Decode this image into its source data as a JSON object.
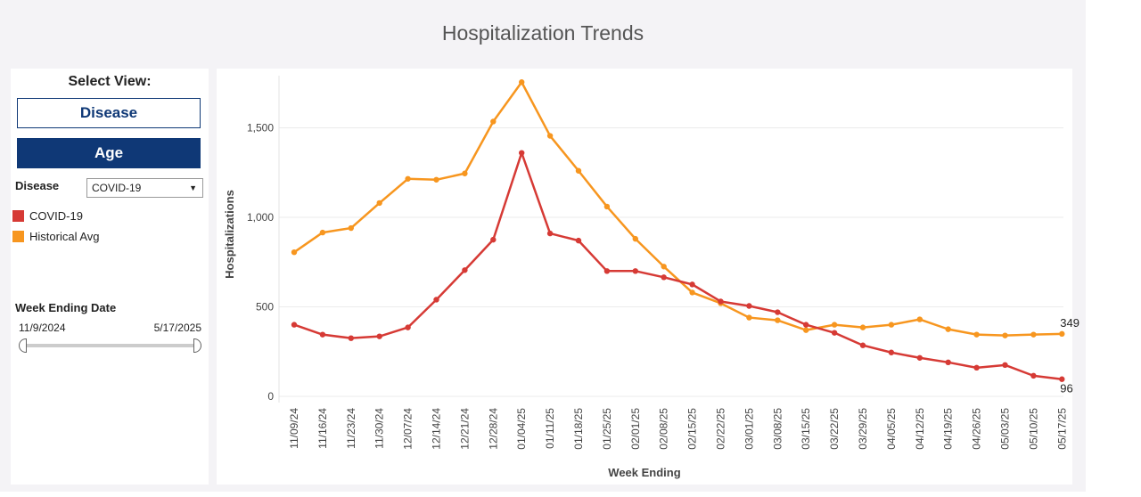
{
  "dashboard": {
    "title": "Hospitalization Trends"
  },
  "controls": {
    "select_view_label": "Select View:",
    "disease_button": "Disease",
    "age_button": "Age",
    "disease_filter_label": "Disease",
    "disease_filter_value": "COVID-19",
    "week_ending_label": "Week Ending Date",
    "range_start": "11/9/2024",
    "range_end": "5/17/2025"
  },
  "legend": [
    {
      "label": "COVID-19",
      "color": "#d63a35"
    },
    {
      "label": "Historical Avg",
      "color": "#f7961f"
    }
  ],
  "chart_data": {
    "type": "line",
    "title": "",
    "xlabel": "Week Ending",
    "ylabel": "Hospitalizations",
    "ylim": [
      0,
      1800
    ],
    "yticks": [
      0,
      500,
      1000,
      1500
    ],
    "ytick_labels": [
      "0",
      "500",
      "1,000",
      "1,500"
    ],
    "categories": [
      "11/09/24",
      "11/16/24",
      "11/23/24",
      "11/30/24",
      "12/07/24",
      "12/14/24",
      "12/21/24",
      "12/28/24",
      "01/04/25",
      "01/11/25",
      "01/18/25",
      "01/25/25",
      "02/01/25",
      "02/08/25",
      "02/15/25",
      "02/22/25",
      "03/01/25",
      "03/08/25",
      "03/15/25",
      "03/22/25",
      "03/29/25",
      "04/05/25",
      "04/12/25",
      "04/19/25",
      "04/26/25",
      "05/03/25",
      "05/10/25",
      "05/17/25"
    ],
    "series": [
      {
        "name": "Historical Avg",
        "color": "#f7961f",
        "values": [
          805,
          915,
          940,
          1080,
          1215,
          1210,
          1245,
          1535,
          1755,
          1455,
          1260,
          1060,
          880,
          725,
          580,
          520,
          440,
          425,
          370,
          400,
          385,
          400,
          430,
          375,
          345,
          340,
          345,
          349
        ],
        "end_label": "349"
      },
      {
        "name": "COVID-19",
        "color": "#d63a35",
        "values": [
          400,
          345,
          325,
          335,
          385,
          540,
          705,
          875,
          1360,
          910,
          870,
          700,
          700,
          665,
          625,
          530,
          505,
          470,
          400,
          355,
          285,
          245,
          215,
          190,
          160,
          175,
          115,
          96
        ],
        "end_label": "96"
      }
    ]
  }
}
